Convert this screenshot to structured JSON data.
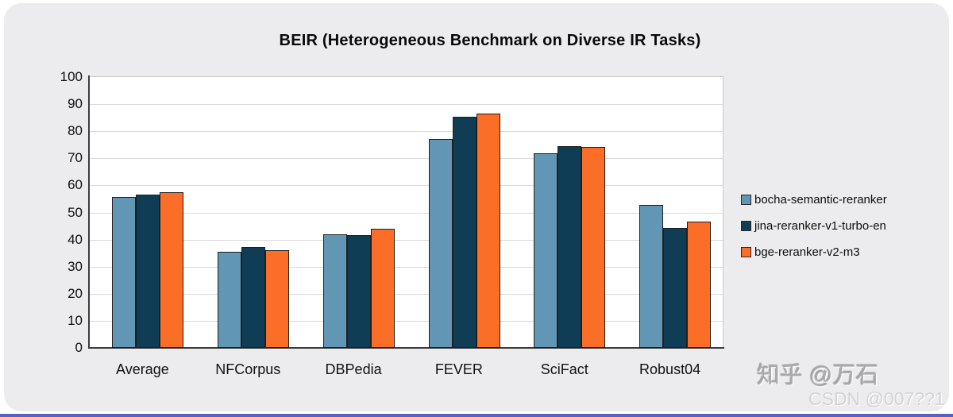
{
  "title": "BEIR (Heterogeneous Benchmark on Diverse IR Tasks)",
  "chart_data": {
    "type": "bar",
    "title": "BEIR (Heterogeneous Benchmark on Diverse IR Tasks)",
    "categories": [
      "Average",
      "NFCorpus",
      "DBPedia",
      "FEVER",
      "SciFact",
      "Robust04"
    ],
    "series": [
      {
        "name": "bocha-semantic-reranker",
        "color": "#6296B5",
        "values": [
          55.7,
          35.4,
          41.9,
          77.0,
          71.8,
          52.8
        ]
      },
      {
        "name": "jina-reranker-v1-turbo-en",
        "color": "#0F3D56",
        "values": [
          56.6,
          37.2,
          41.5,
          85.3,
          74.6,
          44.2
        ]
      },
      {
        "name": "bge-reranker-v2-m3",
        "color": "#FA6E28",
        "values": [
          57.6,
          36.0,
          44.0,
          86.4,
          74.3,
          46.5
        ]
      }
    ],
    "xlabel": "",
    "ylabel": "",
    "ylim": [
      0,
      100
    ],
    "yticks": [
      0,
      10,
      20,
      30,
      40,
      50,
      60,
      70,
      80,
      90,
      100
    ],
    "grid": true,
    "legend_position": "right",
    "plot_background": "#ffffff"
  },
  "watermarks": {
    "zhihu": "知乎 @万石",
    "csdn": "CSDN @007??1"
  },
  "colors": {
    "panel_background": "#ECECEE",
    "series_1": "#6296B5",
    "series_2": "#0F3D56",
    "series_3": "#FA6E28",
    "gridline": "#d9d9d9",
    "axis": "#3d3d3d",
    "bottom_divider_blue": "#5265c4",
    "watermark_zhihu_gray": "#ababae",
    "watermark_csdn_gray": "#d3d3d7"
  }
}
